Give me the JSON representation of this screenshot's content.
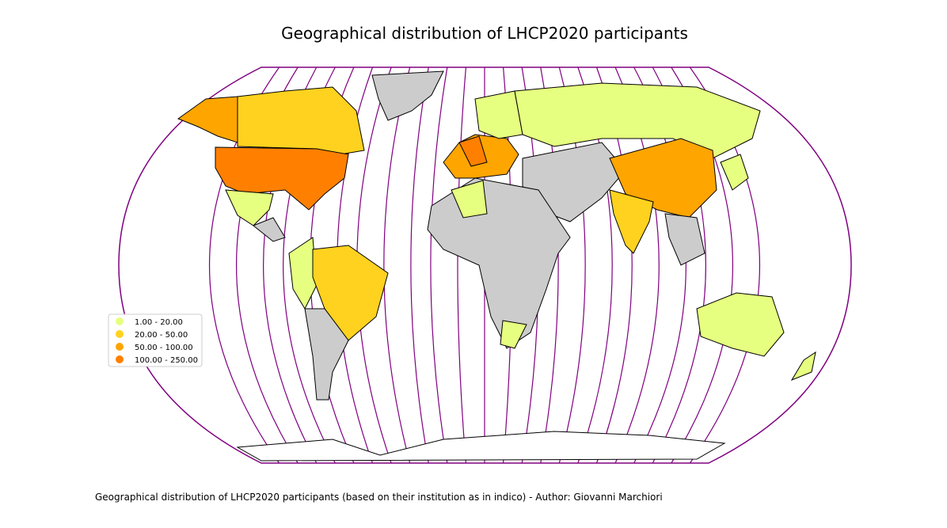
{
  "title": "Geographical distribution of LHCP2020 participants",
  "legend": {
    "items": [
      {
        "label": "1.00 - 20.00",
        "color": "#e6ff80"
      },
      {
        "label": "20.00 - 50.00",
        "color": "#ffd21f"
      },
      {
        "label": "50.00 - 100.00",
        "color": "#ffa500"
      },
      {
        "label": "100.00 - 250.00",
        "color": "#ff8000"
      }
    ]
  },
  "caption": "Geographical distribution of LHCP2020 participants (based on their institution as in indico) - Author: Giovanni Marchiori"
}
